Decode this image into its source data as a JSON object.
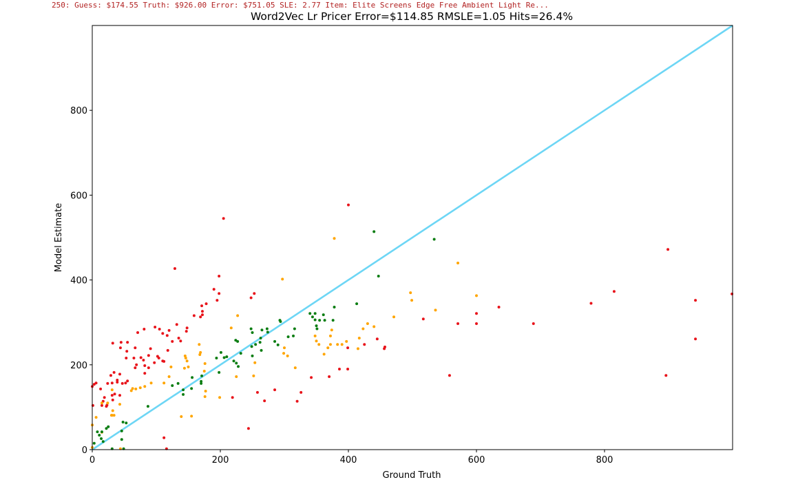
{
  "status_line": "250: Guess: $174.55 Truth: $926.00 Error: $751.05 SLE: 2.77 Item: Elite Screens Edge Free Ambient Light Re...",
  "chart_data": {
    "type": "scatter",
    "title": "Word2Vec Lr Pricer Error=$114.85 RMSLE=1.05 Hits=26.4%",
    "xlabel": "Ground Truth",
    "ylabel": "Model Estimate",
    "xlim": [
      0,
      1000
    ],
    "ylim": [
      0,
      1000
    ],
    "xticks": [
      0,
      200,
      400,
      600,
      800
    ],
    "yticks": [
      0,
      200,
      400,
      600,
      800
    ],
    "grid": false,
    "reference_line": {
      "from": [
        0,
        0
      ],
      "to": [
        1000,
        1000
      ],
      "color": "#6dd6f5"
    },
    "colors": {
      "red": "#e8141b",
      "orange": "#ffa500",
      "green": "#0a7d12"
    },
    "series": [
      {
        "name": "red",
        "points": [
          [
            205,
            545
          ],
          [
            400,
            577
          ],
          [
            899,
            472
          ],
          [
            129,
            427
          ],
          [
            198,
            409
          ],
          [
            190,
            378
          ],
          [
            198,
            368
          ],
          [
            253,
            368
          ],
          [
            248,
            358
          ],
          [
            178,
            344
          ],
          [
            171,
            339
          ],
          [
            172,
            326
          ],
          [
            172,
            318
          ],
          [
            169,
            313
          ],
          [
            195,
            352
          ],
          [
            779,
            345
          ],
          [
            815,
            373
          ],
          [
            942,
            352
          ],
          [
            999,
            367
          ],
          [
            635,
            336
          ],
          [
            600,
            321
          ],
          [
            600,
            297
          ],
          [
            571,
            297
          ],
          [
            689,
            297
          ],
          [
            517,
            308
          ],
          [
            942,
            261
          ],
          [
            445,
            261
          ],
          [
            425,
            248
          ],
          [
            457,
            242
          ],
          [
            456,
            238
          ],
          [
            399,
            240
          ],
          [
            896,
            175
          ],
          [
            558,
            175
          ],
          [
            399,
            190
          ],
          [
            386,
            190
          ],
          [
            370,
            172
          ],
          [
            342,
            170
          ],
          [
            326,
            135
          ],
          [
            320,
            114
          ],
          [
            285,
            141
          ],
          [
            258,
            135
          ],
          [
            269,
            115
          ],
          [
            219,
            123
          ],
          [
            244,
            50
          ],
          [
            112,
            28
          ],
          [
            116,
            2
          ],
          [
            159,
            316
          ],
          [
            148,
            287
          ],
          [
            132,
            295
          ],
          [
            120,
            281
          ],
          [
            110,
            274
          ],
          [
            117,
            269
          ],
          [
            125,
            255
          ],
          [
            98,
            289
          ],
          [
            105,
            284
          ],
          [
            81,
            284
          ],
          [
            71,
            276
          ],
          [
            45,
            253
          ],
          [
            55,
            253
          ],
          [
            32,
            251
          ],
          [
            44,
            240
          ],
          [
            54,
            232
          ],
          [
            67,
            240
          ],
          [
            53,
            216
          ],
          [
            76,
            217
          ],
          [
            91,
            238
          ],
          [
            88,
            222
          ],
          [
            80,
            211
          ],
          [
            82,
            198
          ],
          [
            88,
            193
          ],
          [
            97,
            205
          ],
          [
            104,
            216
          ],
          [
            110,
            209
          ],
          [
            112,
            208
          ],
          [
            69,
            200
          ],
          [
            67,
            193
          ],
          [
            82,
            180
          ],
          [
            102,
            220
          ],
          [
            34,
            182
          ],
          [
            29,
            175
          ],
          [
            39,
            164
          ],
          [
            47,
            156
          ],
          [
            31,
            157
          ],
          [
            43,
            178
          ],
          [
            24,
            156
          ],
          [
            6,
            157
          ],
          [
            3,
            154
          ],
          [
            0,
            149
          ],
          [
            52,
            157
          ],
          [
            55,
            162
          ],
          [
            13,
            143
          ],
          [
            31,
            128
          ],
          [
            35,
            131
          ],
          [
            17,
            114
          ],
          [
            19,
            123
          ],
          [
            32,
            117
          ],
          [
            43,
            128
          ],
          [
            22,
            102
          ],
          [
            15,
            104
          ],
          [
            1,
            104
          ],
          [
            23,
            105
          ],
          [
            39,
            159
          ],
          [
            135,
            263
          ],
          [
            138,
            256
          ],
          [
            147,
            279
          ],
          [
            65,
            216
          ],
          [
            118,
            234
          ]
        ]
      },
      {
        "name": "orange",
        "points": [
          [
            378,
            498
          ],
          [
            297,
            402
          ],
          [
            571,
            440
          ],
          [
            497,
            370
          ],
          [
            499,
            352
          ],
          [
            600,
            363
          ],
          [
            536,
            329
          ],
          [
            471,
            313
          ],
          [
            430,
            297
          ],
          [
            440,
            290
          ],
          [
            423,
            285
          ],
          [
            417,
            263
          ],
          [
            415,
            238
          ],
          [
            397,
            255
          ],
          [
            390,
            248
          ],
          [
            383,
            248
          ],
          [
            372,
            248
          ],
          [
            372,
            268
          ],
          [
            374,
            282
          ],
          [
            350,
            256
          ],
          [
            354,
            248
          ],
          [
            362,
            225
          ],
          [
            368,
            240
          ],
          [
            348,
            268
          ],
          [
            305,
            221
          ],
          [
            300,
            240
          ],
          [
            299,
            227
          ],
          [
            317,
            193
          ],
          [
            254,
            205
          ],
          [
            252,
            174
          ],
          [
            227,
            316
          ],
          [
            217,
            287
          ],
          [
            225,
            172
          ],
          [
            199,
            123
          ],
          [
            167,
            248
          ],
          [
            169,
            229
          ],
          [
            168,
            224
          ],
          [
            176,
            203
          ],
          [
            175,
            185
          ],
          [
            177,
            138
          ],
          [
            176,
            125
          ],
          [
            145,
            221
          ],
          [
            146,
            216
          ],
          [
            148,
            209
          ],
          [
            150,
            195
          ],
          [
            144,
            192
          ],
          [
            123,
            195
          ],
          [
            120,
            172
          ],
          [
            112,
            157
          ],
          [
            92,
            157
          ],
          [
            82,
            149
          ],
          [
            75,
            146
          ],
          [
            63,
            144
          ],
          [
            68,
            143
          ],
          [
            61,
            139
          ],
          [
            31,
            141
          ],
          [
            43,
            107
          ],
          [
            24,
            110
          ],
          [
            15,
            110
          ],
          [
            6,
            76
          ],
          [
            31,
            81
          ],
          [
            30,
            81
          ],
          [
            34,
            81
          ],
          [
            32,
            92
          ],
          [
            139,
            78
          ],
          [
            155,
            79
          ],
          [
            15,
            41
          ],
          [
            0,
            5
          ],
          [
            44,
            2
          ],
          [
            0,
            58
          ]
        ]
      },
      {
        "name": "green",
        "points": [
          [
            440,
            514
          ],
          [
            534,
            496
          ],
          [
            447,
            409
          ],
          [
            413,
            344
          ],
          [
            378,
            336
          ],
          [
            340,
            321
          ],
          [
            348,
            321
          ],
          [
            361,
            318
          ],
          [
            344,
            313
          ],
          [
            348,
            306
          ],
          [
            355,
            305
          ],
          [
            363,
            305
          ],
          [
            376,
            305
          ],
          [
            350,
            292
          ],
          [
            351,
            285
          ],
          [
            293,
            305
          ],
          [
            294,
            302
          ],
          [
            316,
            285
          ],
          [
            273,
            285
          ],
          [
            265,
            282
          ],
          [
            274,
            277
          ],
          [
            248,
            285
          ],
          [
            250,
            276
          ],
          [
            263,
            263
          ],
          [
            227,
            255
          ],
          [
            224,
            258
          ],
          [
            285,
            255
          ],
          [
            290,
            247
          ],
          [
            264,
            234
          ],
          [
            255,
            248
          ],
          [
            249,
            243
          ],
          [
            262,
            253
          ],
          [
            306,
            266
          ],
          [
            314,
            268
          ],
          [
            250,
            221
          ],
          [
            232,
            227
          ],
          [
            194,
            216
          ],
          [
            201,
            229
          ],
          [
            210,
            219
          ],
          [
            206,
            217
          ],
          [
            221,
            209
          ],
          [
            225,
            204
          ],
          [
            228,
            196
          ],
          [
            198,
            182
          ],
          [
            171,
            174
          ],
          [
            170,
            161
          ],
          [
            170,
            156
          ],
          [
            156,
            170
          ],
          [
            155,
            144
          ],
          [
            134,
            156
          ],
          [
            125,
            151
          ],
          [
            142,
            130
          ],
          [
            142,
            141
          ],
          [
            87,
            102
          ],
          [
            48,
            65
          ],
          [
            53,
            63
          ],
          [
            46,
            44
          ],
          [
            46,
            24
          ],
          [
            25,
            54
          ],
          [
            22,
            50
          ],
          [
            15,
            42
          ],
          [
            8,
            42
          ],
          [
            11,
            34
          ],
          [
            14,
            26
          ],
          [
            17,
            19
          ],
          [
            31,
            2
          ],
          [
            3,
            15
          ],
          [
            49,
            2
          ]
        ]
      }
    ]
  }
}
